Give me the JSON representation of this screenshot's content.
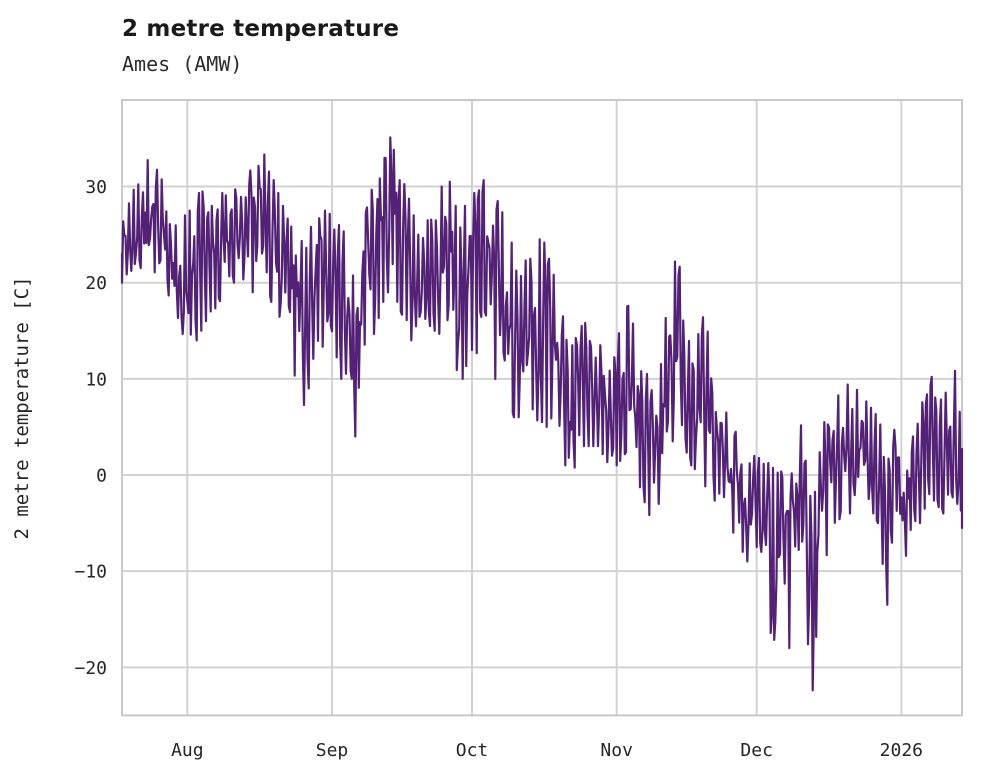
{
  "title": "2 metre temperature",
  "subtitle": "Ames (AMW)",
  "chart_data": {
    "type": "line",
    "title": "2 metre temperature",
    "subtitle": "Ames (AMW)",
    "xlabel": "",
    "ylabel": "2 metre temperature [C]",
    "line_color": "#532277",
    "grid_color": "#d2d2d2",
    "spine_color": "#c9c9c9",
    "grid": true,
    "legend": "none",
    "ylim": [
      -25,
      39
    ],
    "x_span_days": 180,
    "y_ticks": [
      {
        "label": "30",
        "value": 30
      },
      {
        "label": "20",
        "value": 20
      },
      {
        "label": "10",
        "value": 10
      },
      {
        "label": "0",
        "value": 0
      },
      {
        "label": "−10",
        "value": -10
      },
      {
        "label": "−20",
        "value": -20
      }
    ],
    "x_ticks": [
      {
        "label": "Aug",
        "day": 14
      },
      {
        "label": "Sep",
        "day": 45
      },
      {
        "label": "Oct",
        "day": 75
      },
      {
        "label": "Nov",
        "day": 106
      },
      {
        "label": "Dec",
        "day": 136
      },
      {
        "label": "2026",
        "day": 167
      }
    ],
    "daily_envelope": {
      "day_from_start": [
        0,
        2,
        5,
        8,
        11,
        14,
        16,
        19,
        22,
        25,
        28,
        30,
        33,
        36,
        39,
        42,
        45,
        48,
        50,
        53,
        56,
        57,
        59,
        62,
        64,
        67,
        70,
        72,
        75,
        78,
        81,
        84,
        87,
        90,
        93,
        96,
        99,
        102,
        105,
        108,
        111,
        114,
        117,
        119,
        122,
        125,
        128,
        131,
        134,
        137,
        139,
        141,
        143,
        145,
        148,
        150,
        153,
        156,
        159,
        162,
        164,
        166,
        168,
        171,
        173,
        176,
        179,
        180
      ],
      "min_c": [
        20,
        20,
        21,
        20,
        18,
        13,
        14,
        17,
        18,
        21,
        19,
        20,
        17,
        12,
        7,
        13,
        14,
        8,
        4,
        13,
        18,
        19,
        18,
        14,
        12.5,
        15,
        14,
        9,
        12,
        14,
        8,
        6,
        6,
        5.5,
        4,
        -0.5,
        3,
        3,
        0.5,
        2,
        -1.5,
        -5.5,
        2,
        5,
        1,
        -2,
        -3,
        -6,
        -9,
        -8,
        -21,
        -12,
        -18,
        -8,
        -22.4,
        -10,
        -5,
        -4,
        -2,
        -5,
        -13.5,
        -5,
        -9.6,
        -5,
        -2,
        -4,
        -3,
        -5.5
      ],
      "max_c": [
        26,
        29,
        33,
        31.5,
        27,
        27,
        29,
        31,
        29,
        30,
        32,
        34,
        30,
        26,
        24,
        28,
        27,
        25,
        22,
        29,
        33,
        36,
        32.5,
        28,
        24,
        29,
        31,
        27,
        29,
        31,
        28,
        24,
        22,
        25,
        20,
        13,
        16,
        14,
        11,
        18.5,
        13,
        8,
        18,
        23.6,
        12,
        17.3,
        8,
        5,
        2,
        2,
        1,
        0,
        3,
        7,
        -4,
        5,
        8,
        9.7,
        8,
        6,
        3,
        7.5,
        2,
        6,
        14.7,
        8,
        11.4,
        10
      ]
    },
    "extremes": {
      "peak_day": 57,
      "peak_c": 36,
      "trough_day": 148,
      "trough_c": -22.4,
      "first_value_c": 23,
      "last_value_c": -5.5
    }
  }
}
